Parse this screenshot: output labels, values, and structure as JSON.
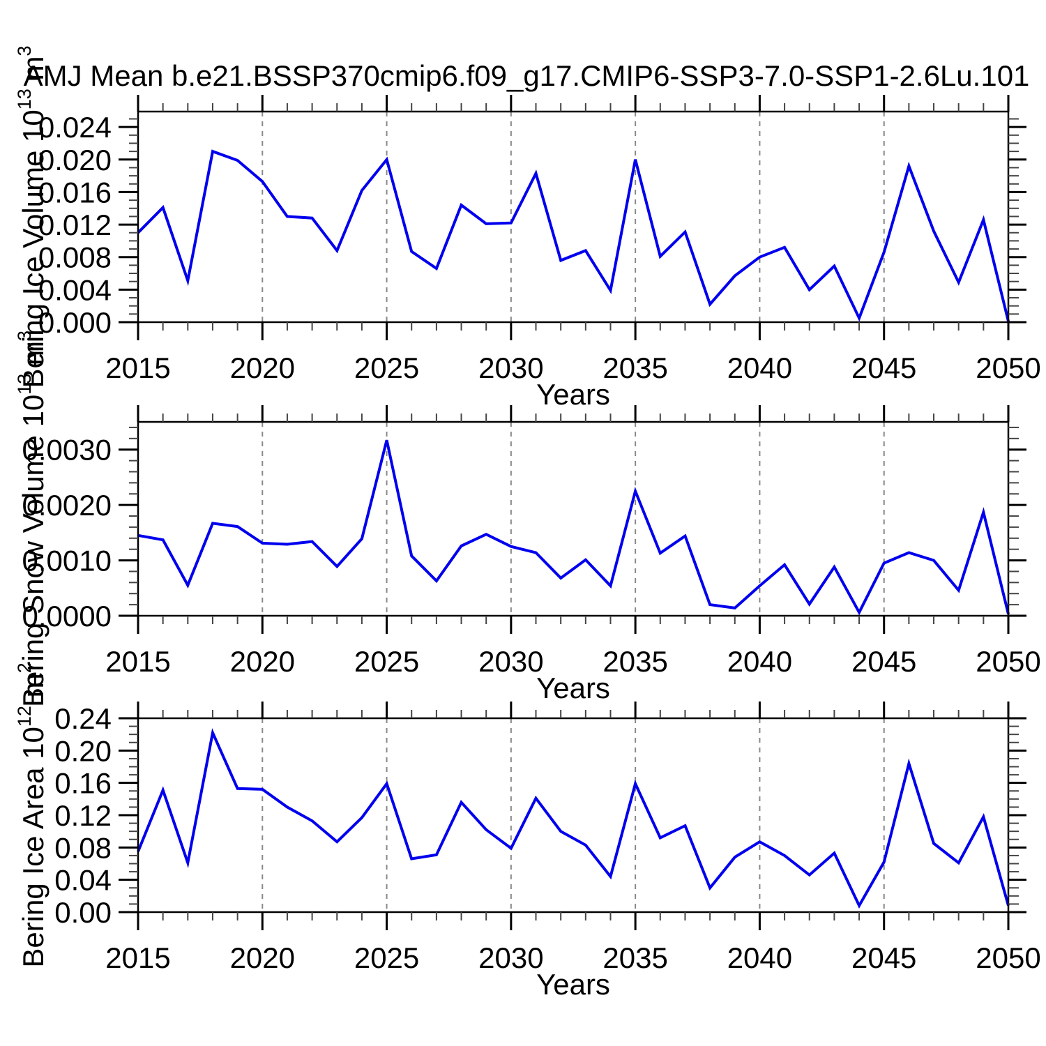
{
  "title": "AMJ Mean b.e21.BSSP370cmip6.f09_g17.CMIP6-SSP3-7.0-SSP1-2.6Lu.101",
  "colors": {
    "line": "#0000ee",
    "frame": "#000000",
    "major_tick": "#000000",
    "minor_tick": "#444444",
    "grid": "#888888",
    "background": "#ffffff"
  },
  "years": [
    2015,
    2016,
    2017,
    2018,
    2019,
    2020,
    2021,
    2022,
    2023,
    2024,
    2025,
    2026,
    2027,
    2028,
    2029,
    2030,
    2031,
    2032,
    2033,
    2034,
    2035,
    2036,
    2037,
    2038,
    2039,
    2040,
    2041,
    2042,
    2043,
    2044,
    2045,
    2046,
    2047,
    2048,
    2049,
    2050
  ],
  "x_axis": {
    "label": "Years",
    "range": [
      2015,
      2050
    ],
    "major_step": 5,
    "minor_step": 1,
    "tick_labels": [
      "2015",
      "2020",
      "2025",
      "2030",
      "2035",
      "2040",
      "2045",
      "2050"
    ],
    "grid_years": [
      2020,
      2025,
      2030,
      2035,
      2040,
      2045
    ],
    "grid_style": "dashed"
  },
  "chart_data": [
    {
      "type": "line",
      "name": "bering-ice-volume",
      "ylabel": "Bering Ice Volume 10^13 m^3",
      "ylabel_parts": [
        {
          "t": "Bering Ice Volume 10"
        },
        {
          "t": "13",
          "sup": true
        },
        {
          "t": " m"
        },
        {
          "t": "3",
          "sup": true
        }
      ],
      "xlabel": "Years",
      "ylim": [
        0,
        0.0259
      ],
      "y_major_step": 0.004,
      "y_minor_step": 0.001,
      "y_tick_labels": [
        "0.000",
        "0.004",
        "0.008",
        "0.012",
        "0.016",
        "0.020",
        "0.024"
      ],
      "legend": "none",
      "grid": "vertical-dashed",
      "values": [
        0.011,
        0.0141,
        0.0051,
        0.021,
        0.0199,
        0.0173,
        0.013,
        0.0128,
        0.0088,
        0.0162,
        0.02,
        0.0087,
        0.0066,
        0.0144,
        0.0121,
        0.0122,
        0.0183,
        0.0076,
        0.0088,
        0.0039,
        0.02,
        0.0081,
        0.0111,
        0.0022,
        0.0057,
        0.008,
        0.0092,
        0.004,
        0.0069,
        0.0005,
        0.0086,
        0.0192,
        0.0112,
        0.0049,
        0.0126,
        0.0001
      ]
    },
    {
      "type": "line",
      "name": "bering-snow-volume",
      "ylabel": "Bering Snow Volume 10^13 m^3",
      "ylabel_parts": [
        {
          "t": "Bering Snow Volume 10"
        },
        {
          "t": "13",
          "sup": true
        },
        {
          "t": " m"
        },
        {
          "t": "3",
          "sup": true
        }
      ],
      "xlabel": "Years",
      "ylim": [
        0,
        0.0035
      ],
      "y_major_step": 0.001,
      "y_minor_step": 0.0002,
      "y_tick_labels": [
        "0.0000",
        "0.0010",
        "0.0020",
        "0.0030"
      ],
      "legend": "none",
      "grid": "vertical-dashed",
      "values": [
        0.00145,
        0.00137,
        0.00055,
        0.00167,
        0.00161,
        0.00131,
        0.00129,
        0.00134,
        0.00089,
        0.00139,
        0.00317,
        0.00108,
        0.00063,
        0.00126,
        0.00147,
        0.00125,
        0.00114,
        0.00068,
        0.00101,
        0.00054,
        0.00225,
        0.00113,
        0.00144,
        0.0002,
        0.00014,
        0.00054,
        0.00092,
        0.00021,
        0.00088,
        6e-05,
        0.00095,
        0.00114,
        0.001,
        0.00046,
        0.00187,
        3e-05
      ]
    },
    {
      "type": "line",
      "name": "bering-ice-area",
      "ylabel": "Bering Ice Area 10^12 m^2",
      "ylabel_parts": [
        {
          "t": "Bering Ice Area 10"
        },
        {
          "t": "12",
          "sup": true
        },
        {
          "t": " m"
        },
        {
          "t": "2",
          "sup": true
        }
      ],
      "xlabel": "Years",
      "ylim": [
        0,
        0.24
      ],
      "y_major_step": 0.04,
      "y_minor_step": 0.01,
      "y_tick_labels": [
        "0.00",
        "0.04",
        "0.08",
        "0.12",
        "0.16",
        "0.20",
        "0.24"
      ],
      "legend": "none",
      "grid": "vertical-dashed",
      "values": [
        0.075,
        0.151,
        0.061,
        0.222,
        0.153,
        0.152,
        0.13,
        0.113,
        0.087,
        0.117,
        0.159,
        0.066,
        0.071,
        0.136,
        0.102,
        0.079,
        0.141,
        0.1,
        0.083,
        0.044,
        0.159,
        0.092,
        0.107,
        0.03,
        0.068,
        0.087,
        0.07,
        0.046,
        0.073,
        0.008,
        0.062,
        0.184,
        0.085,
        0.061,
        0.118,
        0.008
      ]
    }
  ]
}
